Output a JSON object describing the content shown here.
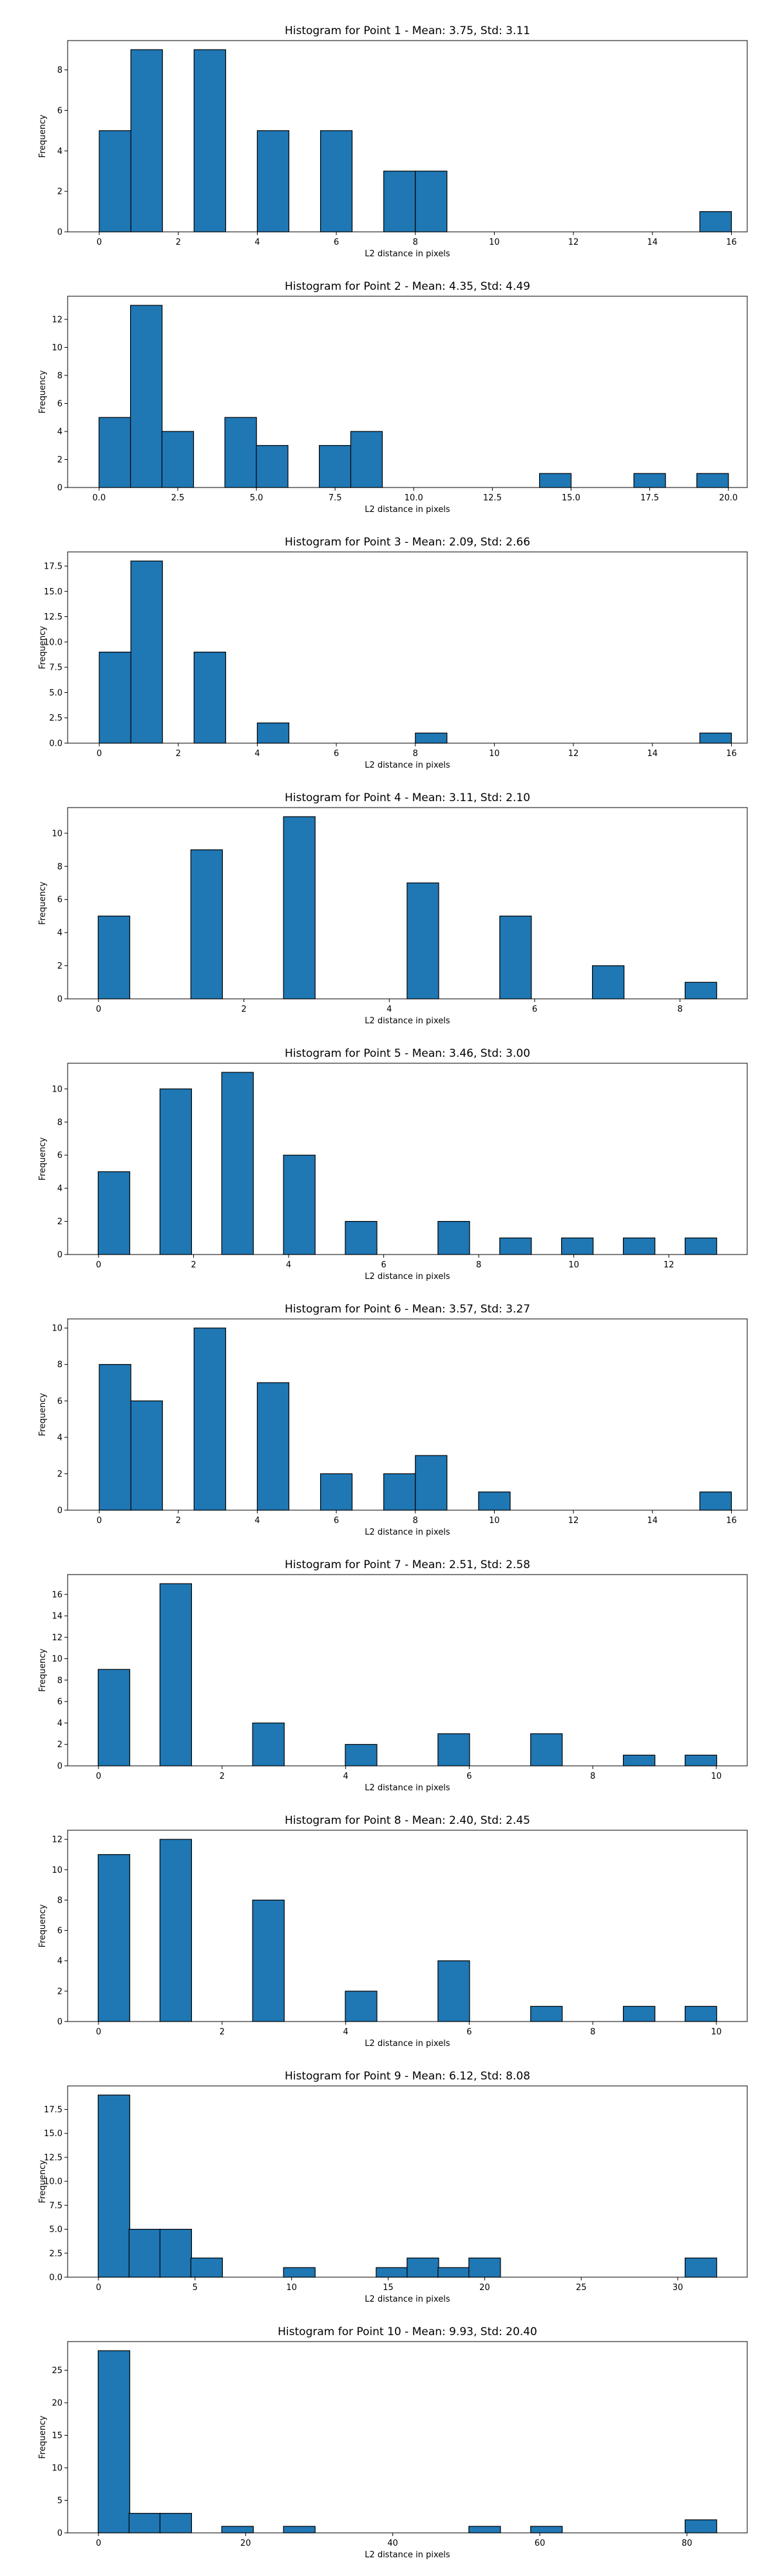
{
  "colors": {
    "bar_fill": "#1f77b4",
    "bar_edge": "#000000",
    "axes": "#000000",
    "text": "#000000",
    "background": "#ffffff"
  },
  "chart_data": [
    {
      "type": "bar",
      "title": "Histogram for Point 1 - Mean: 3.75, Std: 3.11",
      "xlabel": "L2 distance in pixels",
      "ylabel": "Frequency",
      "grid": false,
      "xlim": [
        -0.8,
        16.4
      ],
      "ylim": [
        0,
        9.45
      ],
      "xticks": [
        "0",
        "2",
        "4",
        "6",
        "8",
        "10",
        "12",
        "14",
        "16"
      ],
      "yticks": [
        "0",
        "2",
        "4",
        "6",
        "8"
      ],
      "bars": [
        {
          "x": 0.4,
          "y": 5
        },
        {
          "x": 1.2,
          "y": 9
        },
        {
          "x": 2.8,
          "y": 9
        },
        {
          "x": 4.4,
          "y": 5
        },
        {
          "x": 6.0,
          "y": 5
        },
        {
          "x": 7.6,
          "y": 3
        },
        {
          "x": 8.4,
          "y": 3
        },
        {
          "x": 15.6,
          "y": 1
        }
      ]
    },
    {
      "type": "bar",
      "title": "Histogram for Point 2 - Mean: 4.35, Std: 4.49",
      "xlabel": "L2 distance in pixels",
      "ylabel": "Frequency",
      "grid": false,
      "xlim": [
        -1.0,
        20.6
      ],
      "ylim": [
        0,
        13.65
      ],
      "xticks": [
        "0.0",
        "2.5",
        "5.0",
        "7.5",
        "10.0",
        "12.5",
        "15.0",
        "17.5",
        "20.0"
      ],
      "yticks": [
        "0",
        "2",
        "4",
        "6",
        "8",
        "10",
        "12"
      ],
      "bars": [
        {
          "x": 0.5,
          "y": 5
        },
        {
          "x": 1.5,
          "y": 13
        },
        {
          "x": 2.5,
          "y": 4
        },
        {
          "x": 4.5,
          "y": 5
        },
        {
          "x": 5.5,
          "y": 3
        },
        {
          "x": 7.5,
          "y": 3
        },
        {
          "x": 8.5,
          "y": 4
        },
        {
          "x": 14.5,
          "y": 1
        },
        {
          "x": 17.5,
          "y": 1
        },
        {
          "x": 19.5,
          "y": 1
        }
      ]
    },
    {
      "type": "bar",
      "title": "Histogram for Point 3 - Mean: 2.09, Std: 2.66",
      "xlabel": "L2 distance in pixels",
      "ylabel": "Frequency",
      "grid": false,
      "xlim": [
        -0.8,
        16.4
      ],
      "ylim": [
        0,
        18.9
      ],
      "xticks": [
        "0",
        "2",
        "4",
        "6",
        "8",
        "10",
        "12",
        "14",
        "16"
      ],
      "yticks": [
        "0.0",
        "2.5",
        "5.0",
        "7.5",
        "10.0",
        "12.5",
        "15.0",
        "17.5"
      ],
      "bars": [
        {
          "x": 0.4,
          "y": 9
        },
        {
          "x": 1.2,
          "y": 18
        },
        {
          "x": 2.8,
          "y": 9
        },
        {
          "x": 4.4,
          "y": 2
        },
        {
          "x": 8.4,
          "y": 1
        },
        {
          "x": 15.6,
          "y": 1
        }
      ]
    },
    {
      "type": "bar",
      "title": "Histogram for Point 4 - Mean: 3.11, Std: 2.10",
      "xlabel": "L2 distance in pixels",
      "ylabel": "Frequency",
      "grid": false,
      "xlim": [
        -0.425,
        8.925
      ],
      "ylim": [
        0,
        11.55
      ],
      "xticks": [
        "0",
        "2",
        "4",
        "6",
        "8"
      ],
      "yticks": [
        "0",
        "2",
        "4",
        "6",
        "8",
        "10"
      ],
      "bars": [
        {
          "x": 0.2125,
          "y": 5
        },
        {
          "x": 1.4875,
          "y": 9
        },
        {
          "x": 2.7625,
          "y": 11
        },
        {
          "x": 4.4625,
          "y": 7
        },
        {
          "x": 5.7375,
          "y": 5
        },
        {
          "x": 7.0125,
          "y": 2
        },
        {
          "x": 8.2875,
          "y": 1
        }
      ]
    },
    {
      "type": "bar",
      "title": "Histogram for Point 5 - Mean: 3.46, Std: 3.00",
      "xlabel": "L2 distance in pixels",
      "ylabel": "Frequency",
      "grid": false,
      "xlim": [
        -0.65,
        13.65
      ],
      "ylim": [
        0,
        11.55
      ],
      "xticks": [
        "0",
        "2",
        "4",
        "6",
        "8",
        "10",
        "12"
      ],
      "yticks": [
        "0",
        "2",
        "4",
        "6",
        "8",
        "10"
      ],
      "bars": [
        {
          "x": 0.325,
          "y": 5
        },
        {
          "x": 1.625,
          "y": 10
        },
        {
          "x": 2.925,
          "y": 11
        },
        {
          "x": 4.225,
          "y": 6
        },
        {
          "x": 5.525,
          "y": 2
        },
        {
          "x": 7.475,
          "y": 2
        },
        {
          "x": 8.775,
          "y": 1
        },
        {
          "x": 10.075,
          "y": 1
        },
        {
          "x": 11.375,
          "y": 1
        },
        {
          "x": 12.675,
          "y": 1
        }
      ]
    },
    {
      "type": "bar",
      "title": "Histogram for Point 6 - Mean: 3.57, Std: 3.27",
      "xlabel": "L2 distance in pixels",
      "ylabel": "Frequency",
      "grid": false,
      "xlim": [
        -0.8,
        16.4
      ],
      "ylim": [
        0,
        10.5
      ],
      "xticks": [
        "0",
        "2",
        "4",
        "6",
        "8",
        "10",
        "12",
        "14",
        "16"
      ],
      "yticks": [
        "0",
        "2",
        "4",
        "6",
        "8",
        "10"
      ],
      "bars": [
        {
          "x": 0.4,
          "y": 8
        },
        {
          "x": 1.2,
          "y": 6
        },
        {
          "x": 2.8,
          "y": 10
        },
        {
          "x": 4.4,
          "y": 7
        },
        {
          "x": 6.0,
          "y": 2
        },
        {
          "x": 7.6,
          "y": 2
        },
        {
          "x": 8.4,
          "y": 3
        },
        {
          "x": 10.0,
          "y": 1
        },
        {
          "x": 15.6,
          "y": 1
        }
      ]
    },
    {
      "type": "bar",
      "title": "Histogram for Point 7 - Mean: 2.51, Std: 2.58",
      "xlabel": "L2 distance in pixels",
      "ylabel": "Frequency",
      "grid": false,
      "xlim": [
        -0.5,
        10.5
      ],
      "ylim": [
        0,
        17.85
      ],
      "xticks": [
        "0",
        "2",
        "4",
        "6",
        "8",
        "10"
      ],
      "yticks": [
        "0",
        "2",
        "4",
        "6",
        "8",
        "10",
        "12",
        "14",
        "16"
      ],
      "bars": [
        {
          "x": 0.25,
          "y": 9
        },
        {
          "x": 1.25,
          "y": 17
        },
        {
          "x": 2.75,
          "y": 4
        },
        {
          "x": 4.25,
          "y": 2
        },
        {
          "x": 5.75,
          "y": 3
        },
        {
          "x": 7.25,
          "y": 3
        },
        {
          "x": 8.75,
          "y": 1
        },
        {
          "x": 9.75,
          "y": 1
        }
      ]
    },
    {
      "type": "bar",
      "title": "Histogram for Point 8 - Mean: 2.40, Std: 2.45",
      "xlabel": "L2 distance in pixels",
      "ylabel": "Frequency",
      "grid": false,
      "xlim": [
        -0.5,
        10.5
      ],
      "ylim": [
        0,
        12.6
      ],
      "xticks": [
        "0",
        "2",
        "4",
        "6",
        "8",
        "10"
      ],
      "yticks": [
        "0",
        "2",
        "4",
        "6",
        "8",
        "10",
        "12"
      ],
      "bars": [
        {
          "x": 0.25,
          "y": 11
        },
        {
          "x": 1.25,
          "y": 12
        },
        {
          "x": 2.75,
          "y": 8
        },
        {
          "x": 4.25,
          "y": 2
        },
        {
          "x": 5.75,
          "y": 4
        },
        {
          "x": 7.25,
          "y": 1
        },
        {
          "x": 8.75,
          "y": 1
        },
        {
          "x": 9.75,
          "y": 1
        }
      ]
    },
    {
      "type": "bar",
      "title": "Histogram for Point 9 - Mean: 6.12, Std: 8.08",
      "xlabel": "L2 distance in pixels",
      "ylabel": "Frequency",
      "grid": false,
      "xlim": [
        -1.6,
        33.6
      ],
      "ylim": [
        0,
        19.95
      ],
      "xticks": [
        "0",
        "5",
        "10",
        "15",
        "20",
        "25",
        "30"
      ],
      "yticks": [
        "0.0",
        "2.5",
        "5.0",
        "7.5",
        "10.0",
        "12.5",
        "15.0",
        "17.5"
      ],
      "bars": [
        {
          "x": 0.8,
          "y": 19
        },
        {
          "x": 2.4,
          "y": 5
        },
        {
          "x": 4.0,
          "y": 5
        },
        {
          "x": 5.6,
          "y": 2
        },
        {
          "x": 10.4,
          "y": 1
        },
        {
          "x": 15.2,
          "y": 1
        },
        {
          "x": 16.8,
          "y": 2
        },
        {
          "x": 18.4,
          "y": 1
        },
        {
          "x": 20.0,
          "y": 2
        },
        {
          "x": 31.2,
          "y": 2
        }
      ]
    },
    {
      "type": "bar",
      "title": "Histogram for Point 10 - Mean: 9.93, Std: 20.40",
      "xlabel": "L2 distance in pixels",
      "ylabel": "Frequency",
      "grid": false,
      "xlim": [
        -4.2,
        88.2
      ],
      "ylim": [
        0,
        29.4
      ],
      "xticks": [
        "0",
        "20",
        "40",
        "60",
        "80"
      ],
      "yticks": [
        "0",
        "5",
        "10",
        "15",
        "20",
        "25"
      ],
      "bars": [
        {
          "x": 2.1,
          "y": 28
        },
        {
          "x": 6.3,
          "y": 3
        },
        {
          "x": 10.5,
          "y": 3
        },
        {
          "x": 18.9,
          "y": 1
        },
        {
          "x": 27.3,
          "y": 1
        },
        {
          "x": 52.5,
          "y": 1
        },
        {
          "x": 60.9,
          "y": 1
        },
        {
          "x": 81.9,
          "y": 2
        }
      ]
    }
  ]
}
